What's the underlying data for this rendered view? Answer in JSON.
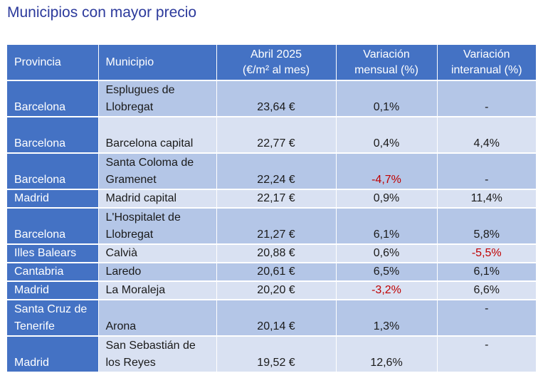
{
  "title": "Municipios con mayor precio",
  "headers": {
    "provincia": "Provincia",
    "municipio": "Municipio",
    "precio_line1": "Abril 2025",
    "precio_line2": "(€/m² al mes)",
    "mensual_line1": "Variación",
    "mensual_line2": "mensual (%)",
    "interanual_line1": "Variación",
    "interanual_line2": "interanual (%)"
  },
  "rows": [
    {
      "provincia": "Barcelona",
      "municipio": "Esplugues de Llobregat",
      "precio": "23,64 €",
      "mensual": "0,1%",
      "interanual": "-"
    },
    {
      "provincia": "Barcelona",
      "municipio": "Barcelona capital",
      "precio": "22,77 €",
      "mensual": "0,4%",
      "interanual": "4,4%"
    },
    {
      "provincia": "Barcelona",
      "municipio": "Santa Coloma de Gramenet",
      "precio": "22,24 €",
      "mensual": "-4,7%",
      "interanual": "-"
    },
    {
      "provincia": "Madrid",
      "municipio": "Madrid capital",
      "precio": "22,17 €",
      "mensual": "0,9%",
      "interanual": "11,4%"
    },
    {
      "provincia": "Barcelona",
      "municipio": "L'Hospitalet de Llobregat",
      "precio": "21,27 €",
      "mensual": "6,1%",
      "interanual": "5,8%"
    },
    {
      "provincia": "Illes Balears",
      "municipio": "Calvià",
      "precio": "20,88 €",
      "mensual": "0,6%",
      "interanual": "-5,5%"
    },
    {
      "provincia": "Cantabria",
      "municipio": "Laredo",
      "precio": "20,61 €",
      "mensual": "6,5%",
      "interanual": "6,1%"
    },
    {
      "provincia": "Madrid",
      "municipio": "La Moraleja",
      "precio": "20,20 €",
      "mensual": "-3,2%",
      "interanual": "6,6%"
    },
    {
      "provincia": "Santa Cruz de Tenerife",
      "municipio": "Arona",
      "precio": "20,14 €",
      "mensual": "1,3%",
      "interanual": "-"
    },
    {
      "provincia": "Madrid",
      "municipio": "San Sebastián de los Reyes",
      "precio": "19,52 €",
      "mensual": "12,6%",
      "interanual": "-"
    }
  ],
  "colors": {
    "header_bg": "#4472c4",
    "row_dark": "#b4c6e7",
    "row_light": "#d9e1f2",
    "negative": "#c00000",
    "title": "#2c3a9c"
  }
}
